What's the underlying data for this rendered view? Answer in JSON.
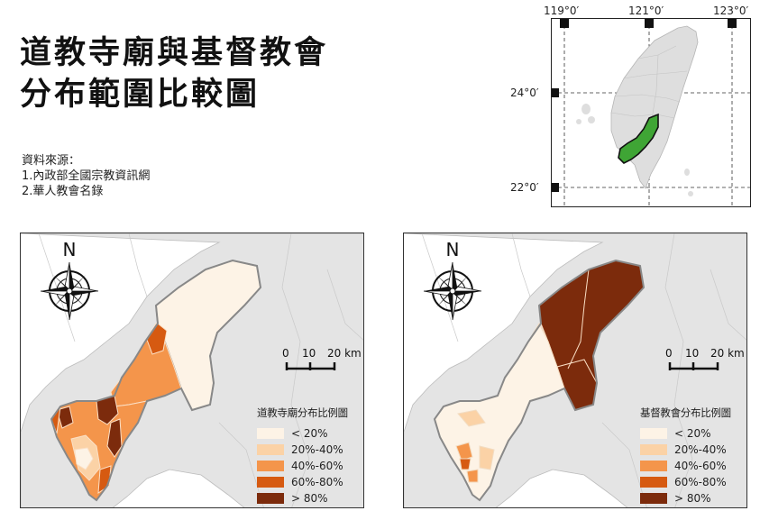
{
  "title": {
    "line1": "道教寺廟與基督教會",
    "line2": "分布範圍比較圖"
  },
  "sources": {
    "heading": "資料來源：",
    "items": [
      "1.內政部全國宗教資訊網",
      "2.華人教會名錄"
    ]
  },
  "inset": {
    "lon_labels": [
      "119°0′",
      "121°0′",
      "123°0′"
    ],
    "lat_labels": [
      "24°0′",
      "22°0′"
    ],
    "highlight_color": "#3fa535"
  },
  "left_map": {
    "north": "N",
    "scale_labels": [
      "0",
      "10",
      "20 km"
    ],
    "legend_title": "道教寺廟分布比例圖"
  },
  "right_map": {
    "north": "N",
    "scale_labels": [
      "0",
      "10",
      "20 km"
    ],
    "legend_title": "基督教會分布比例圖"
  },
  "legend_classes": [
    {
      "label": "< 20%",
      "color": "#fdf3e6"
    },
    {
      "label": "20%-40%",
      "color": "#fbd2a6"
    },
    {
      "label": "40%-60%",
      "color": "#f4954b"
    },
    {
      "label": "60%-80%",
      "color": "#d65a11"
    },
    {
      "label": "> 80%",
      "color": "#7c2b0c"
    }
  ]
}
